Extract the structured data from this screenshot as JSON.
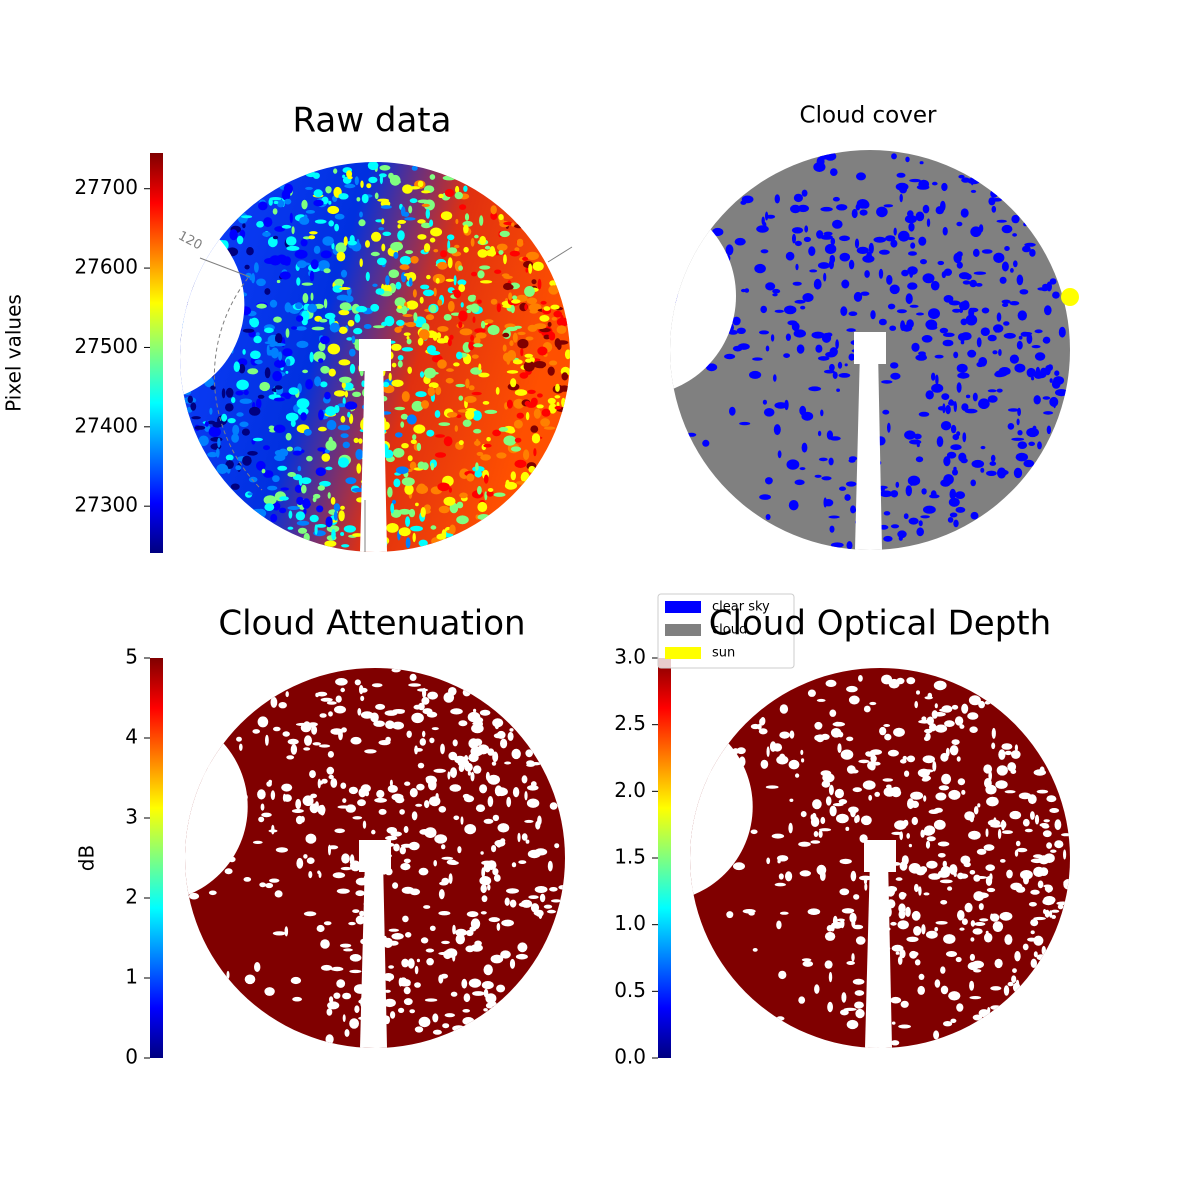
{
  "chart_data": [
    {
      "type": "image",
      "title": "Raw data",
      "cmap": "jet",
      "colorbar": {
        "label": "Pixel values",
        "ylim": [
          27241,
          27745
        ],
        "yticks": [
          27300,
          27400,
          27500,
          27600,
          27700
        ]
      },
      "annotations": [
        "120"
      ]
    },
    {
      "type": "image",
      "title": "Cloud cover",
      "series": [
        {
          "name": "clear sky",
          "color": "#0000ff"
        },
        {
          "name": "cloud",
          "color": "#808080"
        },
        {
          "name": "sun",
          "color": "#ffff00"
        }
      ]
    },
    {
      "type": "image",
      "title": "Cloud Attenuation",
      "cmap": "jet",
      "colorbar": {
        "label": "dB",
        "ylim": [
          0,
          5
        ],
        "yticks": [
          0,
          1,
          2,
          3,
          4,
          5
        ]
      }
    },
    {
      "type": "image",
      "title": "Cloud Optical Depth",
      "cmap": "jet",
      "colorbar": {
        "ylim": [
          0,
          3
        ],
        "yticks": [
          {
            "value": 0,
            "label": "0.0"
          },
          {
            "value": 0.5,
            "label": "0.5"
          },
          {
            "value": 1,
            "label": "1.0"
          },
          {
            "value": 1.5,
            "label": "1.5"
          },
          {
            "value": 2,
            "label": "2.0"
          },
          {
            "value": 2.5,
            "label": "2.5"
          },
          {
            "value": 3,
            "label": "3.0"
          }
        ]
      }
    }
  ]
}
